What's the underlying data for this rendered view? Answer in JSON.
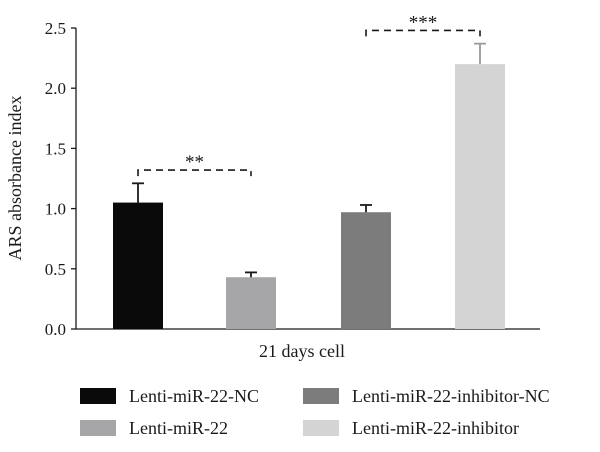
{
  "chart_data": {
    "type": "bar",
    "title": "",
    "xlabel": "21 days cell",
    "ylabel": "ARS absorbance index",
    "ylim": [
      0,
      2.5
    ],
    "yticks": [
      "0.0",
      "0.5",
      "1.0",
      "1.5",
      "2.0",
      "2.5"
    ],
    "grid": false,
    "categories": [
      "Lenti-miR-22-NC",
      "Lenti-miR-22",
      "Lenti-miR-22-inhibitor-NC",
      "Lenti-miR-22-inhibitor"
    ],
    "values": [
      1.05,
      0.43,
      0.97,
      2.2
    ],
    "errors": [
      0.16,
      0.04,
      0.06,
      0.17
    ],
    "colors": [
      "#0a0a0a",
      "#a6a6a8",
      "#7c7c7c",
      "#d4d4d4"
    ],
    "legend_position": "bottom",
    "significance": [
      {
        "label": "**",
        "from": 0,
        "to": 1,
        "y": 1.32
      },
      {
        "label": "***",
        "from": 2,
        "to": 3,
        "y": 2.48
      }
    ]
  }
}
